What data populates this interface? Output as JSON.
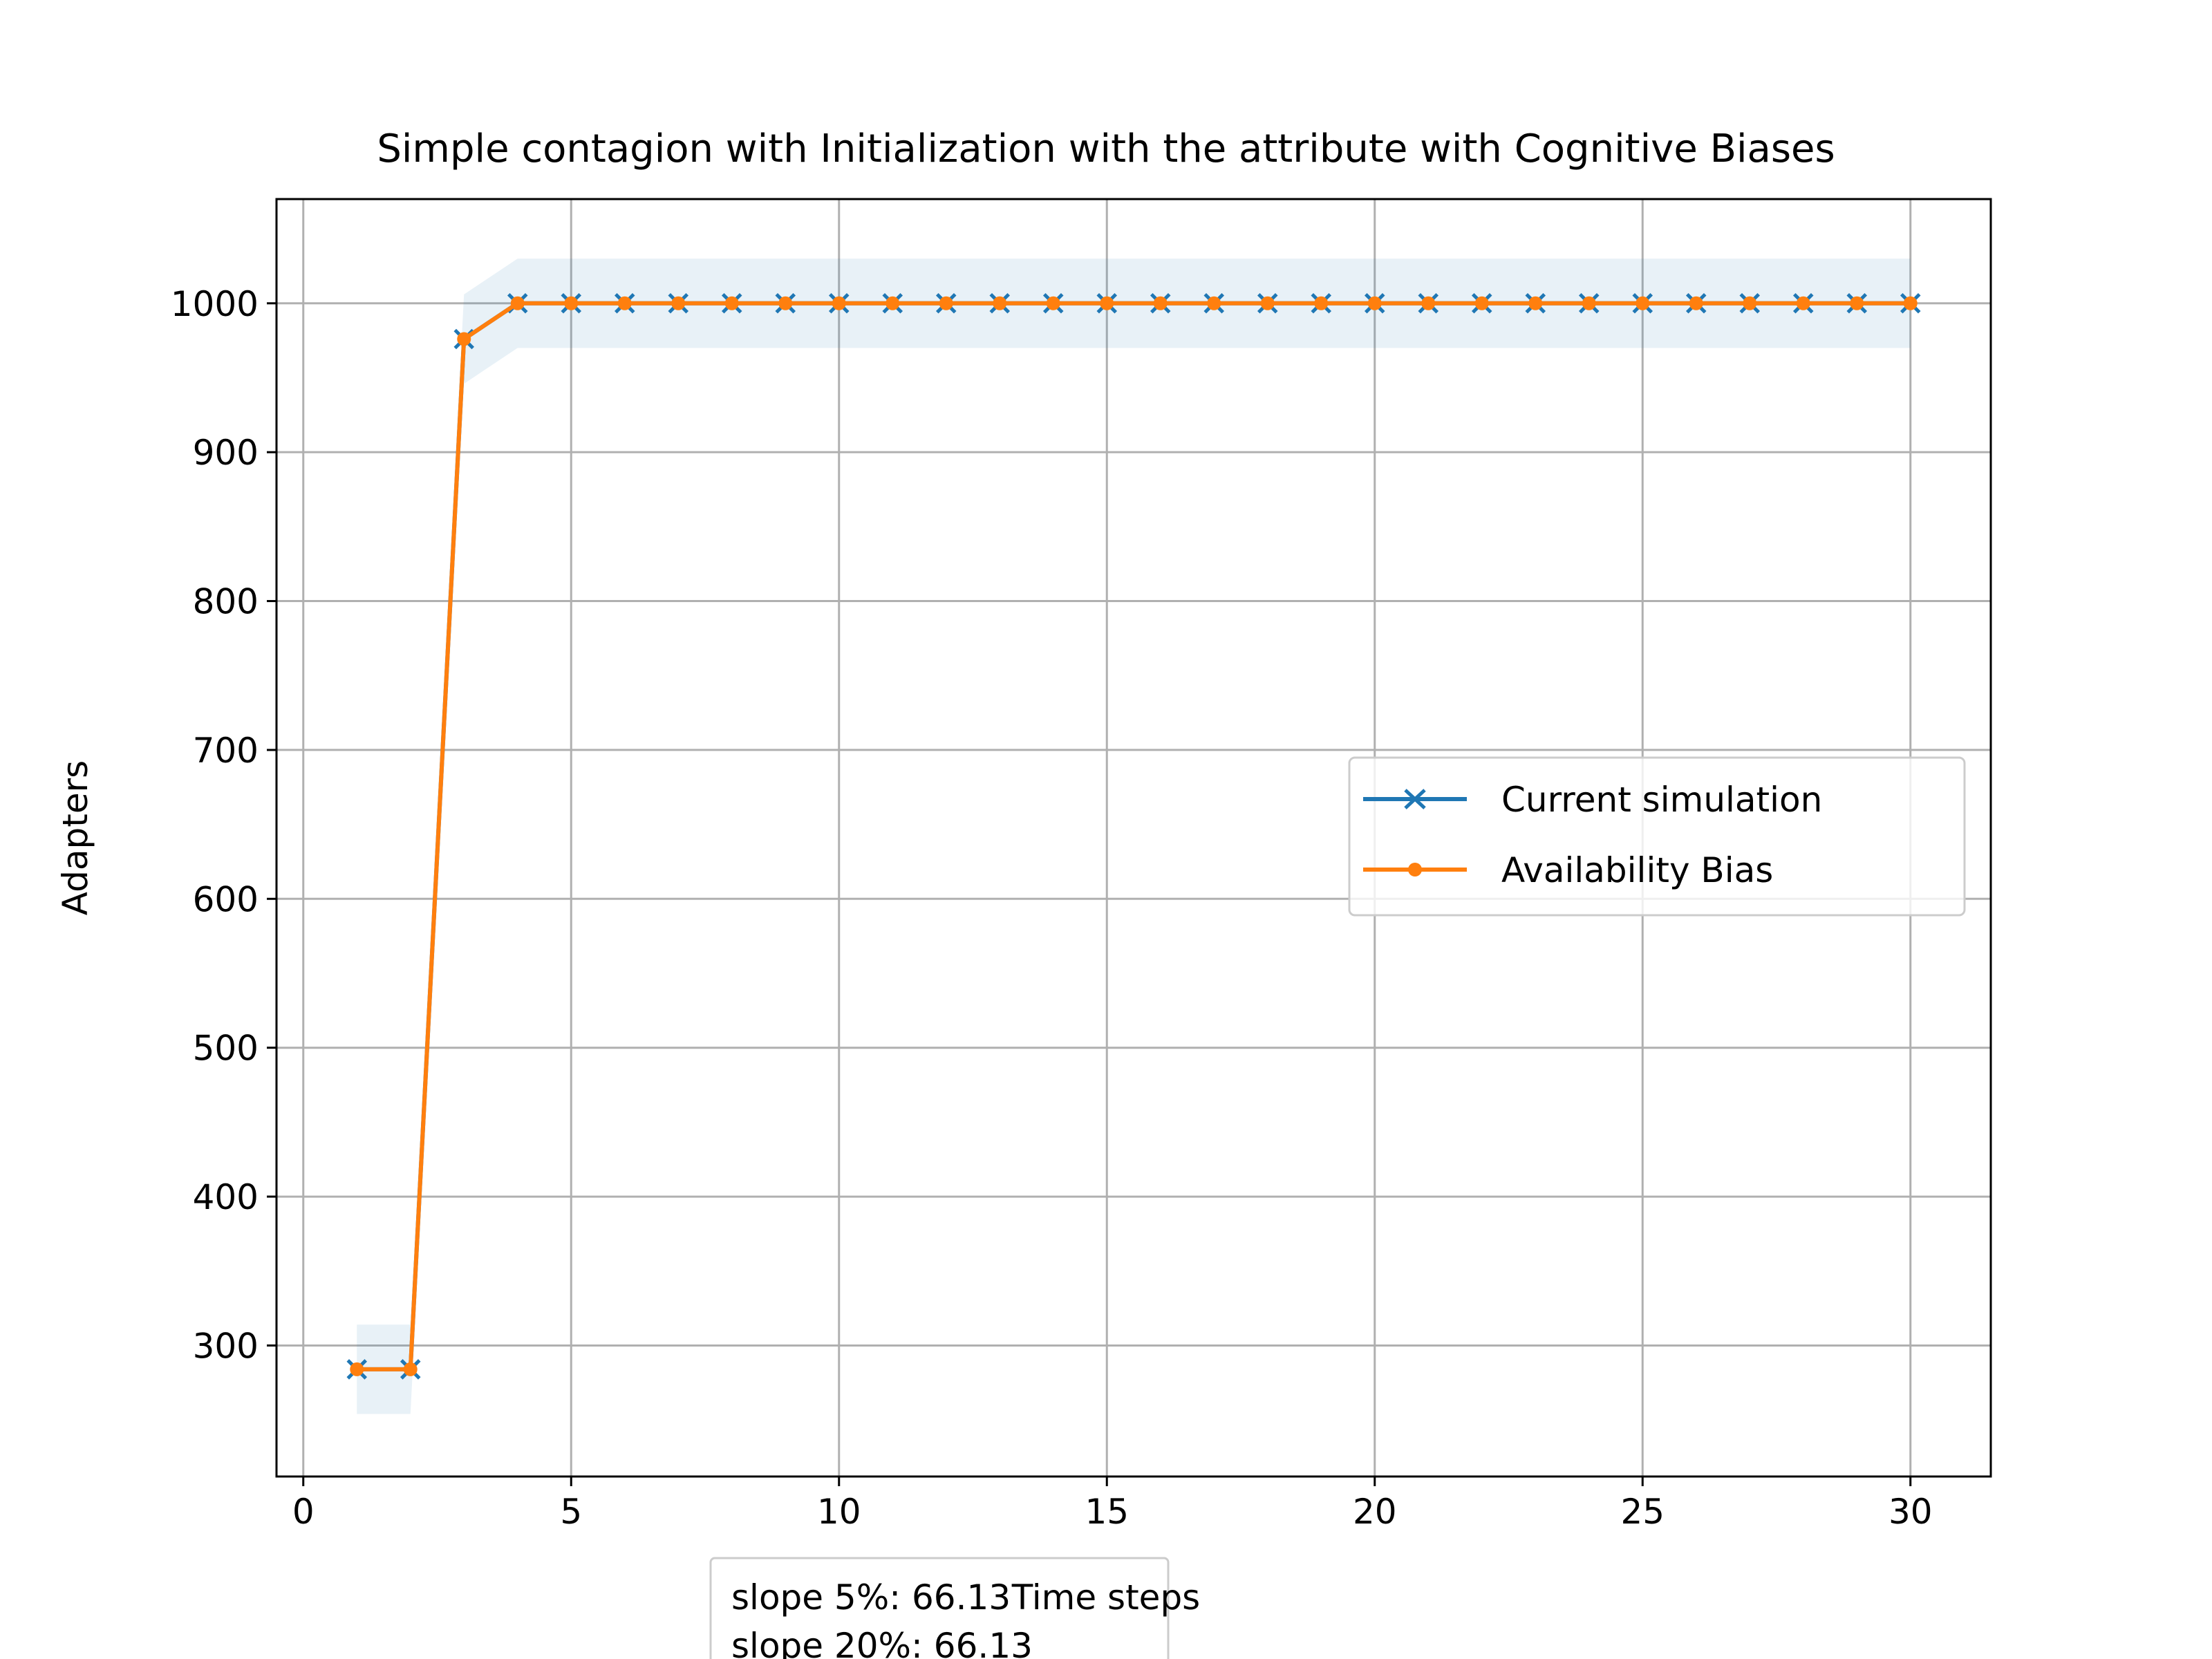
{
  "chart_data": {
    "type": "line",
    "title": "Simple contagion with Initialization with the attribute with Cognitive Biases",
    "xlabel": "Time steps",
    "ylabel": "Adapters",
    "xlim": [
      -0.5,
      31.5
    ],
    "ylim": [
      212,
      1070
    ],
    "xticks": [
      0,
      5,
      10,
      15,
      20,
      25,
      30
    ],
    "yticks": [
      300,
      400,
      500,
      600,
      700,
      800,
      900,
      1000
    ],
    "grid": true,
    "legend_position": "center-right",
    "x": [
      1,
      2,
      3,
      4,
      5,
      6,
      7,
      8,
      9,
      10,
      11,
      12,
      13,
      14,
      15,
      16,
      17,
      18,
      19,
      20,
      21,
      22,
      23,
      24,
      25,
      26,
      27,
      28,
      29,
      30
    ],
    "series": [
      {
        "name": "Current simulation",
        "color": "#1f77b4",
        "marker": "x",
        "values": [
          284,
          284,
          976,
          1000,
          1000,
          1000,
          1000,
          1000,
          1000,
          1000,
          1000,
          1000,
          1000,
          1000,
          1000,
          1000,
          1000,
          1000,
          1000,
          1000,
          1000,
          1000,
          1000,
          1000,
          1000,
          1000,
          1000,
          1000,
          1000,
          1000
        ],
        "band": {
          "color": "#1f77b4",
          "lower": [
            254,
            254,
            946,
            970,
            970,
            970,
            970,
            970,
            970,
            970,
            970,
            970,
            970,
            970,
            970,
            970,
            970,
            970,
            970,
            970,
            970,
            970,
            970,
            970,
            970,
            970,
            970,
            970,
            970,
            970
          ],
          "upper": [
            314,
            314,
            1006,
            1030,
            1030,
            1030,
            1030,
            1030,
            1030,
            1030,
            1030,
            1030,
            1030,
            1030,
            1030,
            1030,
            1030,
            1030,
            1030,
            1030,
            1030,
            1030,
            1030,
            1030,
            1030,
            1030,
            1030,
            1030,
            1030,
            1030
          ]
        }
      },
      {
        "name": "Availability Bias",
        "color": "#ff7f0e",
        "marker": "dot",
        "values": [
          284,
          284,
          976,
          1000,
          1000,
          1000,
          1000,
          1000,
          1000,
          1000,
          1000,
          1000,
          1000,
          1000,
          1000,
          1000,
          1000,
          1000,
          1000,
          1000,
          1000,
          1000,
          1000,
          1000,
          1000,
          1000,
          1000,
          1000,
          1000,
          1000
        ]
      }
    ],
    "annotation_lines": [
      "slope 5%: 66.13",
      "slope 20%: 66.13"
    ]
  }
}
